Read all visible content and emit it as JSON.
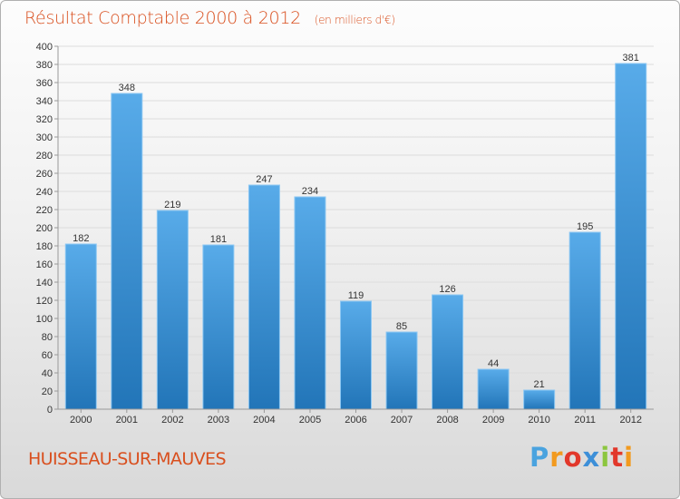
{
  "chart_data": {
    "type": "bar",
    "title": "Résultat Comptable 2000 à 2012",
    "unit_note": "(en milliers d'€)",
    "categories": [
      "2000",
      "2001",
      "2002",
      "2003",
      "2004",
      "2005",
      "2006",
      "2007",
      "2008",
      "2009",
      "2010",
      "2011",
      "2012"
    ],
    "values": [
      182,
      348,
      219,
      181,
      247,
      234,
      119,
      85,
      126,
      44,
      21,
      195,
      381
    ],
    "ylim": [
      0,
      400
    ],
    "yticks": [
      0,
      20,
      40,
      60,
      80,
      100,
      120,
      140,
      160,
      180,
      200,
      220,
      240,
      260,
      280,
      300,
      320,
      340,
      360,
      380,
      400
    ],
    "xlabel": "",
    "ylabel": "",
    "bar_color": "#3a8fd6"
  },
  "footer": {
    "location": "HUISSEAU-SUR-MAUVES"
  },
  "brand": {
    "name": "Proxiti",
    "letters": [
      "P",
      "r",
      "o",
      "x",
      "i",
      "t",
      "i"
    ],
    "colors": [
      "#4aa3df",
      "#f29a1f",
      "#e2382b",
      "#3d8fd8",
      "#8cc63f",
      "#e2382b",
      "#f29a1f"
    ]
  }
}
